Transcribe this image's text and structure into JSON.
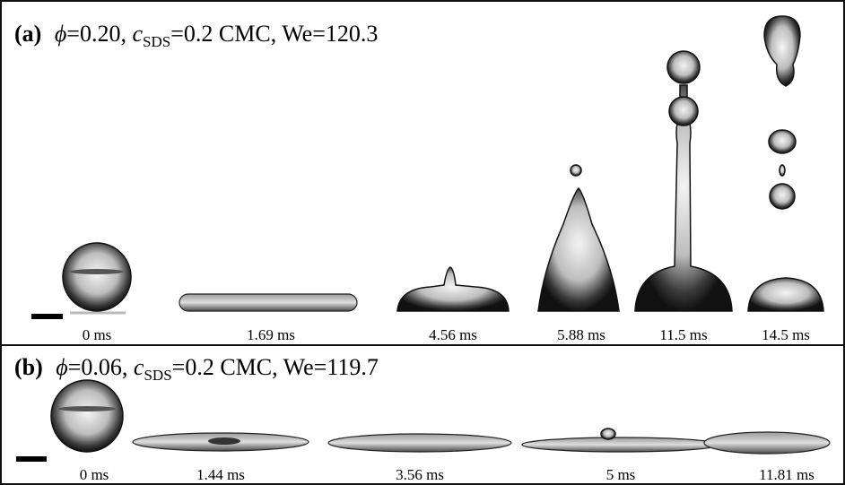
{
  "panels": [
    {
      "label": "(a)",
      "phi_symbol": "ϕ",
      "phi_value": "=0.20, ",
      "c_symbol": "c",
      "c_subscript": "SDS",
      "rest": "=0.2 CMC, We=120.3",
      "times": [
        "0 ms",
        "1.69 ms",
        "4.56 ms",
        "5.88 ms",
        "11.5 ms",
        "14.5 ms"
      ]
    },
    {
      "label": "(b)",
      "phi_symbol": "ϕ",
      "phi_value": "=0.06, ",
      "c_symbol": "c",
      "c_subscript": "SDS",
      "rest": "=0.2 CMC, We=119.7",
      "times": [
        "0 ms",
        "1.44 ms",
        "3.56 ms",
        "5 ms",
        "11.81 ms"
      ]
    }
  ]
}
